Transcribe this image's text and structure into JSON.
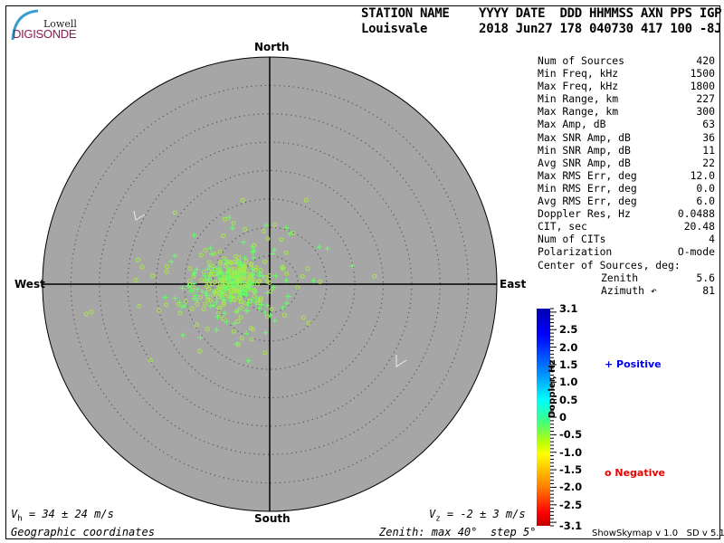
{
  "logo": {
    "line1": "Lowell",
    "line2": "DIGISONDE"
  },
  "header": {
    "labels": "STATION NAME    YYYY DATE  DDD HHMMSS AXN PPS IGP",
    "values": "Louisvale       2018 Jun27 178 040730 417 100 -8J"
  },
  "stats": [
    {
      "label": "Num of Sources",
      "value": "420"
    },
    {
      "label": "Min Freq, kHz",
      "value": "1500"
    },
    {
      "label": "Max Freq, kHz",
      "value": "1800"
    },
    {
      "label": "Min Range, km",
      "value": "227"
    },
    {
      "label": "Max Range, km",
      "value": "300"
    },
    {
      "label": "Max Amp, dB",
      "value": "63"
    },
    {
      "label": "Max SNR Amp, dB",
      "value": "36"
    },
    {
      "label": "Min SNR Amp, dB",
      "value": "11"
    },
    {
      "label": "Avg SNR Amp, dB",
      "value": "22"
    },
    {
      "label": "Max RMS Err, deg",
      "value": "12.0"
    },
    {
      "label": "Min RMS Err, deg",
      "value": "0.0"
    },
    {
      "label": "Avg RMS Err, deg",
      "value": "6.0"
    },
    {
      "label": "Doppler Res, Hz",
      "value": "0.0488"
    },
    {
      "label": "CIT, sec",
      "value": "20.48"
    },
    {
      "label": "Num of CITs",
      "value": "4"
    },
    {
      "label": "Polarization",
      "value": "O-mode"
    }
  ],
  "center": {
    "title": "Center of Sources, deg:",
    "zenith_label": "Zenith",
    "zenith_value": "5.6",
    "azimuth_label": "Azimuth ↶",
    "azimuth_value": "81"
  },
  "directions": {
    "north": "North",
    "south": "South",
    "east": "East",
    "west": "West"
  },
  "footer": {
    "vh": "Vₕ = 34 ± 24 m/s",
    "vz": "Vₓ = -2 ± 3 m/s",
    "vh_sym": "V",
    "vh_sub": "h",
    "vh_rest": " = 34 ± 24 m/s",
    "vz_sym": "V",
    "vz_sub": "z",
    "vz_rest": " = -2 ± 3 m/s",
    "coords": "Geographic coordinates",
    "zenith": "Zenith: max 40°  step 5°",
    "version": "ShowSkymap v 1.0   SD v 5.1"
  },
  "colorbar": {
    "title": "Doppler, Hz",
    "ticks": [
      "3.1",
      "2.5",
      "2.0",
      "1.5",
      "1.0",
      "0.5",
      "0",
      "-0.5",
      "-1.0",
      "-1.5",
      "-2.0",
      "-2.5",
      "-3.1"
    ],
    "legend_positive": "+ Positive",
    "legend_negative": "o Negative",
    "positive_color": "#0000ee",
    "negative_color": "#ee0000"
  },
  "skymap": {
    "zenith_max_deg": 40,
    "zenith_step_deg": 5,
    "background": "#a6a6a6",
    "num_sources": 420,
    "center_zenith_deg": 5.6,
    "center_azimuth_deg": 81
  }
}
